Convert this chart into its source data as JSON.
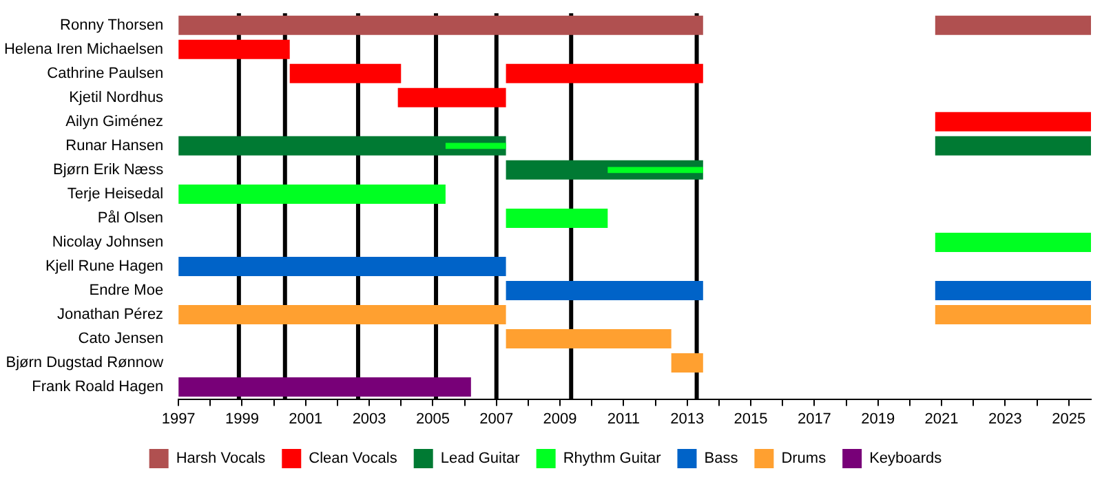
{
  "chart_data": {
    "type": "bar",
    "orientation": "horizontal",
    "legend": "bottom",
    "grid": false,
    "categories": [
      "Ronny Thorsen",
      "Helena Iren Michaelsen",
      "Cathrine Paulsen",
      "Kjetil Nordhus",
      "Ailyn Giménez",
      "Runar Hansen",
      "Bjørn Erik Næss",
      "Terje Heisedal",
      "Pål Olsen",
      "Nicolay Johnsen",
      "Kjell Rune Hagen",
      "Endre Moe",
      "Jonathan Pérez",
      "Cato Jensen",
      "Bjørn Dugstad Rønnow",
      "Frank Roald Hagen"
    ],
    "xlim": [
      1997,
      2025.7
    ],
    "xticks": [
      1997,
      {
        "value": 1998,
        "label": null
      },
      1999,
      {
        "value": 2000,
        "label": null
      },
      2001,
      {
        "value": 2002,
        "label": null
      },
      2003,
      {
        "value": 2004,
        "label": null
      },
      2005,
      {
        "value": 2006,
        "label": null
      },
      2007,
      {
        "value": 2008,
        "label": null
      },
      2009,
      {
        "value": 2010,
        "label": null
      },
      2011,
      {
        "value": 2012,
        "label": null
      },
      2013,
      {
        "value": 2014,
        "label": null
      },
      2015,
      {
        "value": 2016,
        "label": null
      },
      2017,
      {
        "value": 2018,
        "label": null
      },
      2019,
      {
        "value": 2020,
        "label": null
      },
      2021,
      {
        "value": 2022,
        "label": null
      },
      2023,
      {
        "value": 2024,
        "label": null
      },
      2025
    ],
    "series": [
      {
        "name": "Harsh Vocals",
        "color": "#b05050",
        "base": [
          1997,
          null,
          null,
          null,
          null,
          null,
          null,
          null,
          null,
          null,
          null,
          null,
          null,
          null,
          null,
          null
        ],
        "values": [
          16.5,
          null,
          null,
          null,
          null,
          null,
          null,
          null,
          null,
          null,
          null,
          null,
          null,
          null,
          null,
          null
        ]
      },
      {
        "color": "#b05050",
        "base": [
          2020.8,
          null,
          null,
          null,
          null,
          null,
          null,
          null,
          null,
          null,
          null,
          null,
          null,
          null,
          null,
          null
        ],
        "values": [
          4.9,
          null,
          null,
          null,
          null,
          null,
          null,
          null,
          null,
          null,
          null,
          null,
          null,
          null,
          null,
          null
        ]
      },
      {
        "name": "Clean Vocals",
        "color": "#ff0000",
        "base": [
          null,
          1997,
          2000.5,
          2003.9,
          2020.8,
          null,
          null,
          null,
          null,
          null,
          null,
          null,
          null,
          null,
          null,
          null
        ],
        "values": [
          null,
          3.5,
          3.5,
          3.4,
          4.9,
          null,
          null,
          null,
          null,
          null,
          null,
          null,
          null,
          null,
          null,
          null
        ]
      },
      {
        "color": "#ff0000",
        "base": [
          null,
          null,
          2007.3,
          null,
          null,
          null,
          null,
          null,
          null,
          null,
          null,
          null,
          null,
          null,
          null,
          null
        ],
        "values": [
          null,
          null,
          6.2,
          null,
          null,
          null,
          null,
          null,
          null,
          null,
          null,
          null,
          null,
          null,
          null,
          null
        ]
      },
      {
        "name": "Lead Guitar",
        "color": "#007a33",
        "base": [
          null,
          null,
          null,
          null,
          null,
          1997,
          2007.3,
          null,
          null,
          null,
          null,
          null,
          null,
          null,
          null,
          null
        ],
        "values": [
          null,
          null,
          null,
          null,
          null,
          10.3,
          6.2,
          null,
          null,
          null,
          null,
          null,
          null,
          null,
          null,
          null
        ]
      },
      {
        "color": "#007a33",
        "base": [
          null,
          null,
          null,
          null,
          null,
          2020.8,
          null,
          null,
          null,
          null,
          null,
          null,
          null,
          null,
          null,
          null
        ],
        "values": [
          null,
          null,
          null,
          null,
          null,
          4.9,
          null,
          null,
          null,
          null,
          null,
          null,
          null,
          null,
          null,
          null
        ]
      },
      {
        "name": "Rhythm Guitar",
        "color": "#00ff22",
        "base": [
          null,
          null,
          null,
          null,
          null,
          null,
          null,
          1997,
          2007.3,
          2020.8,
          null,
          null,
          null,
          null,
          null,
          null
        ],
        "values": [
          null,
          null,
          null,
          null,
          null,
          null,
          null,
          8.4,
          3.2,
          4.9,
          null,
          null,
          null,
          null,
          null,
          null
        ]
      },
      {
        "color": "#00ff22",
        "base": [
          null,
          null,
          null,
          null,
          null,
          2005.4,
          2010.5,
          null,
          null,
          null,
          null,
          null,
          null,
          null,
          null,
          null
        ],
        "values": [
          null,
          null,
          null,
          null,
          null,
          1.9,
          3.0,
          null,
          null,
          null,
          null,
          null,
          null,
          null,
          null,
          null
        ]
      },
      {
        "name": "Bass",
        "color": "#0063c8",
        "base": [
          null,
          null,
          null,
          null,
          null,
          null,
          null,
          null,
          null,
          null,
          1997,
          2007.3,
          null,
          null,
          null,
          null
        ],
        "values": [
          null,
          null,
          null,
          null,
          null,
          null,
          null,
          null,
          null,
          null,
          10.3,
          6.2,
          null,
          null,
          null,
          null
        ]
      },
      {
        "color": "#0063c8",
        "base": [
          null,
          null,
          null,
          null,
          null,
          null,
          null,
          null,
          null,
          null,
          null,
          2020.8,
          null,
          null,
          null,
          null
        ],
        "values": [
          null,
          null,
          null,
          null,
          null,
          null,
          null,
          null,
          null,
          null,
          null,
          4.9,
          null,
          null,
          null,
          null
        ]
      },
      {
        "name": "Drums",
        "color": "#ffa030",
        "base": [
          null,
          null,
          null,
          null,
          null,
          null,
          null,
          null,
          null,
          null,
          null,
          null,
          1997,
          2007.3,
          2012.5,
          null
        ],
        "values": [
          null,
          null,
          null,
          null,
          null,
          null,
          null,
          null,
          null,
          null,
          null,
          null,
          10.3,
          5.2,
          1.0,
          null
        ]
      },
      {
        "color": "#ffa030",
        "base": [
          null,
          null,
          null,
          null,
          null,
          null,
          null,
          null,
          null,
          null,
          null,
          null,
          2020.8,
          null,
          null,
          null
        ],
        "values": [
          null,
          null,
          null,
          null,
          null,
          null,
          null,
          null,
          null,
          null,
          null,
          null,
          4.9,
          null,
          null,
          null
        ]
      },
      {
        "name": "Keyboards",
        "color": "#780078",
        "base": [
          null,
          null,
          null,
          null,
          null,
          null,
          null,
          null,
          null,
          null,
          null,
          null,
          null,
          null,
          null,
          1997
        ],
        "values": [
          null,
          null,
          null,
          null,
          null,
          null,
          null,
          null,
          null,
          null,
          null,
          null,
          null,
          null,
          null,
          9.2
        ]
      }
    ],
    "ref_lines": [
      {
        "axis": "x",
        "value": 1998.9,
        "color": "#000000"
      },
      {
        "axis": "x",
        "value": 2000.35,
        "color": "#000000"
      },
      {
        "axis": "x",
        "value": 2002.65,
        "color": "#000000"
      },
      {
        "axis": "x",
        "value": 2005.1,
        "color": "#000000"
      },
      {
        "axis": "x",
        "value": 2007.0,
        "color": "#000000"
      },
      {
        "axis": "x",
        "value": 2009.35,
        "color": "#000000"
      },
      {
        "axis": "x",
        "value": 2013.3,
        "color": "#000000"
      }
    ]
  }
}
